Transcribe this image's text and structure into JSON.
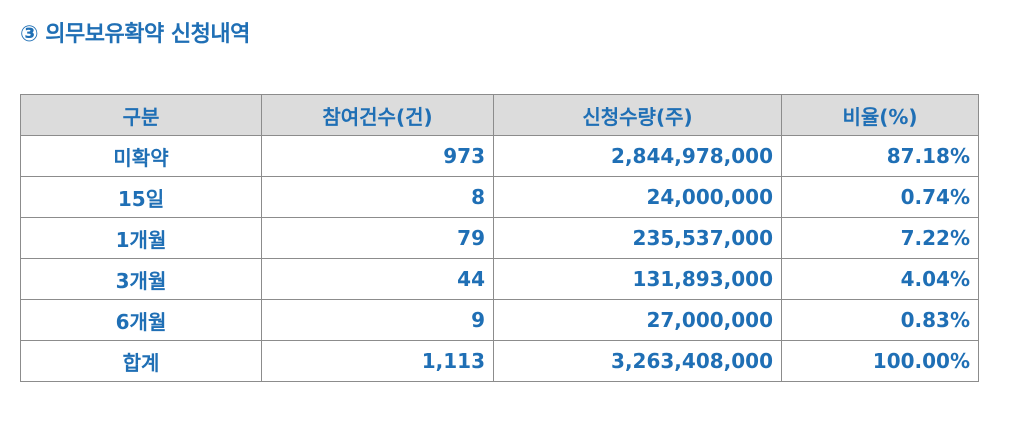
{
  "title": "③ 의무보유확약 신청내역",
  "table": {
    "headers": [
      "구분",
      "참여건수(건)",
      "신청수량(주)",
      "비율(%)"
    ],
    "rows": [
      {
        "category": "미확약",
        "count": "973",
        "quantity": "2,844,978,000",
        "ratio": "87.18%"
      },
      {
        "category": "15일",
        "count": "8",
        "quantity": "24,000,000",
        "ratio": "0.74%"
      },
      {
        "category": "1개월",
        "count": "79",
        "quantity": "235,537,000",
        "ratio": "7.22%"
      },
      {
        "category": "3개월",
        "count": "44",
        "quantity": "131,893,000",
        "ratio": "4.04%"
      },
      {
        "category": "6개월",
        "count": "9",
        "quantity": "27,000,000",
        "ratio": "0.83%"
      },
      {
        "category": "합계",
        "count": "1,113",
        "quantity": "3,263,408,000",
        "ratio": "100.00%"
      }
    ]
  },
  "colors": {
    "text": "#1f6fb5",
    "header_bg": "#dcdcdc",
    "border": "#8c8c8c"
  }
}
